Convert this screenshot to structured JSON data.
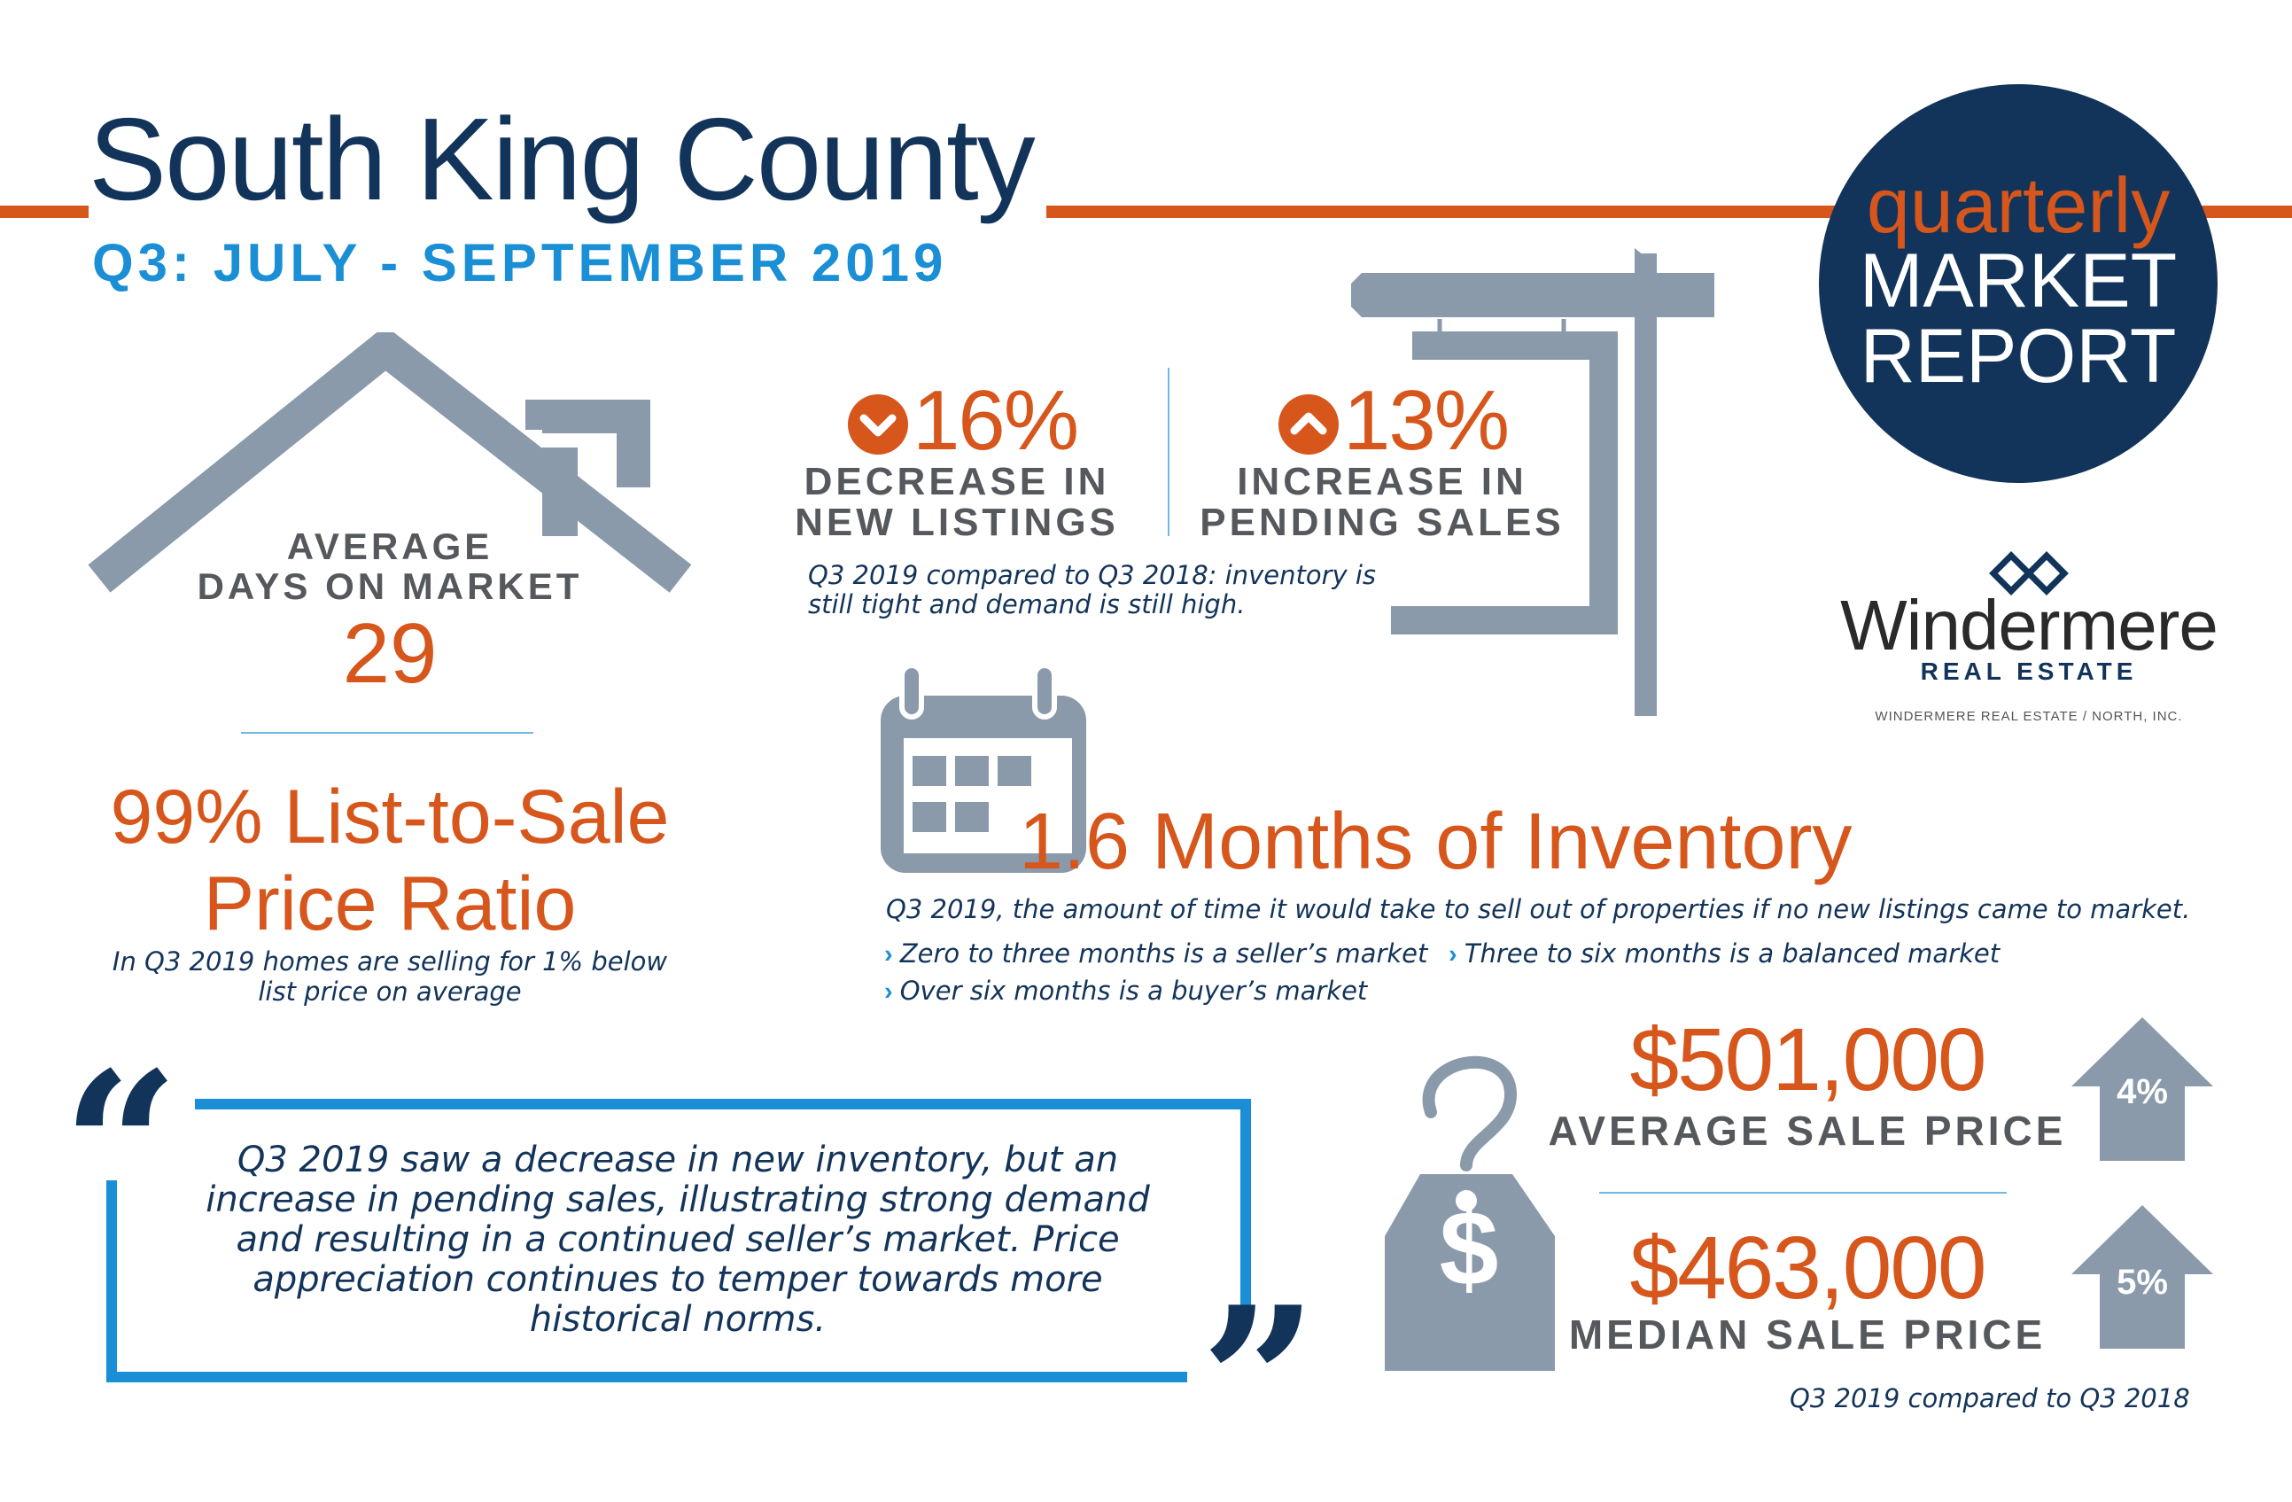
{
  "header": {
    "title": "South King County",
    "subtitle": "Q3: JULY - SEPTEMBER 2019"
  },
  "badge": {
    "line1": "quarterly",
    "line2": "MARKET",
    "line3": "REPORT"
  },
  "brand": {
    "name": "Windermere",
    "tagline": "REAL ESTATE",
    "office": "WINDERMERE REAL ESTATE / NORTH, INC."
  },
  "days_on_market": {
    "label_line1": "AVERAGE",
    "label_line2": "DAYS ON MARKET",
    "value": "29"
  },
  "listings": {
    "new_listings_value": "16%",
    "new_listings_line1": "DECREASE IN",
    "new_listings_line2": "NEW LISTINGS",
    "pending_value": "13%",
    "pending_line1": "INCREASE IN",
    "pending_line2": "PENDING SALES",
    "note_line1": "Q3 2019 compared to Q3 2018: inventory is",
    "note_line2": "still tight and demand is still high."
  },
  "ratio": {
    "line1": "99% List-to-Sale",
    "line2": "Price Ratio",
    "note_line1": "In Q3 2019 homes are selling for 1% below",
    "note_line2": "list price on average"
  },
  "inventory": {
    "title": "1.6 Months of Inventory",
    "note": "Q3 2019, the amount of time it would take to sell out of properties if no new listings came to market.",
    "bullets": [
      "Zero to three months is a seller’s market",
      "Three to six months is a balanced market",
      "Over six months is a buyer’s market"
    ]
  },
  "quote": {
    "line1": "Q3 2019 saw a decrease in new inventory, but an",
    "line2": "increase in pending sales, illustrating strong demand",
    "line3": "and resulting in a continued seller’s market. Price",
    "line4": "appreciation continues to temper towards more",
    "line5": "historical norms.",
    "open_mark": "“",
    "close_mark": "”"
  },
  "prices": {
    "avg_value": "$501,000",
    "avg_label": "AVERAGE SALE PRICE",
    "avg_change": "4%",
    "median_value": "$463,000",
    "median_label": "MEDIAN SALE PRICE",
    "median_change": "5%",
    "note": "Q3 2019 compared to Q3 2018",
    "tag_symbol": "$"
  },
  "colors": {
    "navy": "#13345a",
    "orange": "#d6561c",
    "blue": "#1a8fd6",
    "icon_gray": "#8a9aaa"
  }
}
